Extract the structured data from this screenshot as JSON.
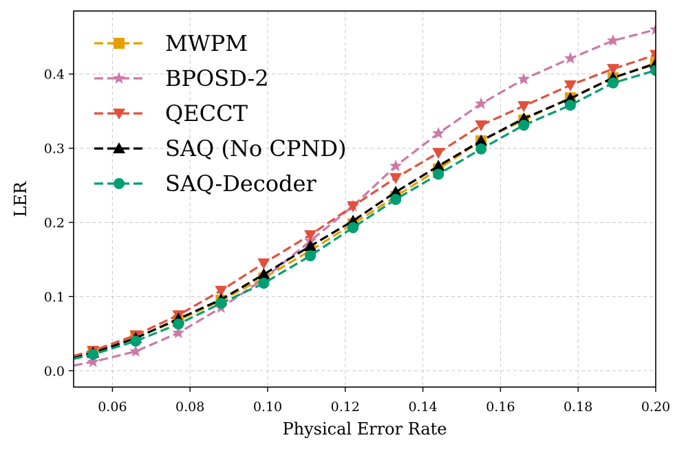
{
  "chart_data": {
    "type": "line",
    "title": "",
    "xlabel": "Physical Error Rate",
    "ylabel": "LER",
    "xlim": [
      0.05,
      0.2
    ],
    "ylim": [
      -0.022,
      0.485
    ],
    "xticks": [
      0.06,
      0.08,
      0.1,
      0.12,
      0.14,
      0.16,
      0.18,
      0.2
    ],
    "xtick_labels": [
      "0.06",
      "0.08",
      "0.10",
      "0.12",
      "0.14",
      "0.16",
      "0.18",
      "0.20"
    ],
    "yticks": [
      0.0,
      0.1,
      0.2,
      0.3,
      0.4
    ],
    "ytick_labels": [
      "0.0",
      "0.1",
      "0.2",
      "0.3",
      "0.4"
    ],
    "grid": true,
    "legend_position": "top-left",
    "x": [
      0.05,
      0.055,
      0.066,
      0.077,
      0.088,
      0.099,
      0.111,
      0.122,
      0.133,
      0.144,
      0.155,
      0.166,
      0.178,
      0.189,
      0.2
    ],
    "series": [
      {
        "name": "MWPM",
        "color": "#E69F00",
        "marker": "square",
        "values": [
          0.018,
          0.025,
          0.045,
          0.068,
          0.095,
          0.125,
          0.162,
          0.198,
          0.235,
          0.272,
          0.31,
          0.338,
          0.368,
          0.395,
          0.415
        ]
      },
      {
        "name": "BPOSD-2",
        "color": "#CC79A7",
        "marker": "star",
        "values": [
          0.007,
          0.012,
          0.026,
          0.051,
          0.085,
          0.124,
          0.175,
          0.222,
          0.276,
          0.32,
          0.36,
          0.393,
          0.421,
          0.445,
          0.46
        ]
      },
      {
        "name": "QECCT",
        "color": "#E2503C",
        "marker": "triangle-down",
        "values": [
          0.02,
          0.027,
          0.048,
          0.075,
          0.108,
          0.145,
          0.183,
          0.222,
          0.26,
          0.294,
          0.331,
          0.357,
          0.385,
          0.407,
          0.426
        ]
      },
      {
        "name": "SAQ (No CPND)",
        "color": "#000000",
        "marker": "triangle-up",
        "values": [
          0.017,
          0.024,
          0.044,
          0.07,
          0.096,
          0.13,
          0.168,
          0.202,
          0.241,
          0.276,
          0.31,
          0.34,
          0.367,
          0.395,
          0.414
        ]
      },
      {
        "name": "SAQ-Decoder",
        "color": "#009E73",
        "marker": "circle",
        "values": [
          0.016,
          0.022,
          0.04,
          0.063,
          0.091,
          0.118,
          0.155,
          0.193,
          0.231,
          0.265,
          0.299,
          0.331,
          0.358,
          0.388,
          0.405
        ]
      }
    ]
  }
}
